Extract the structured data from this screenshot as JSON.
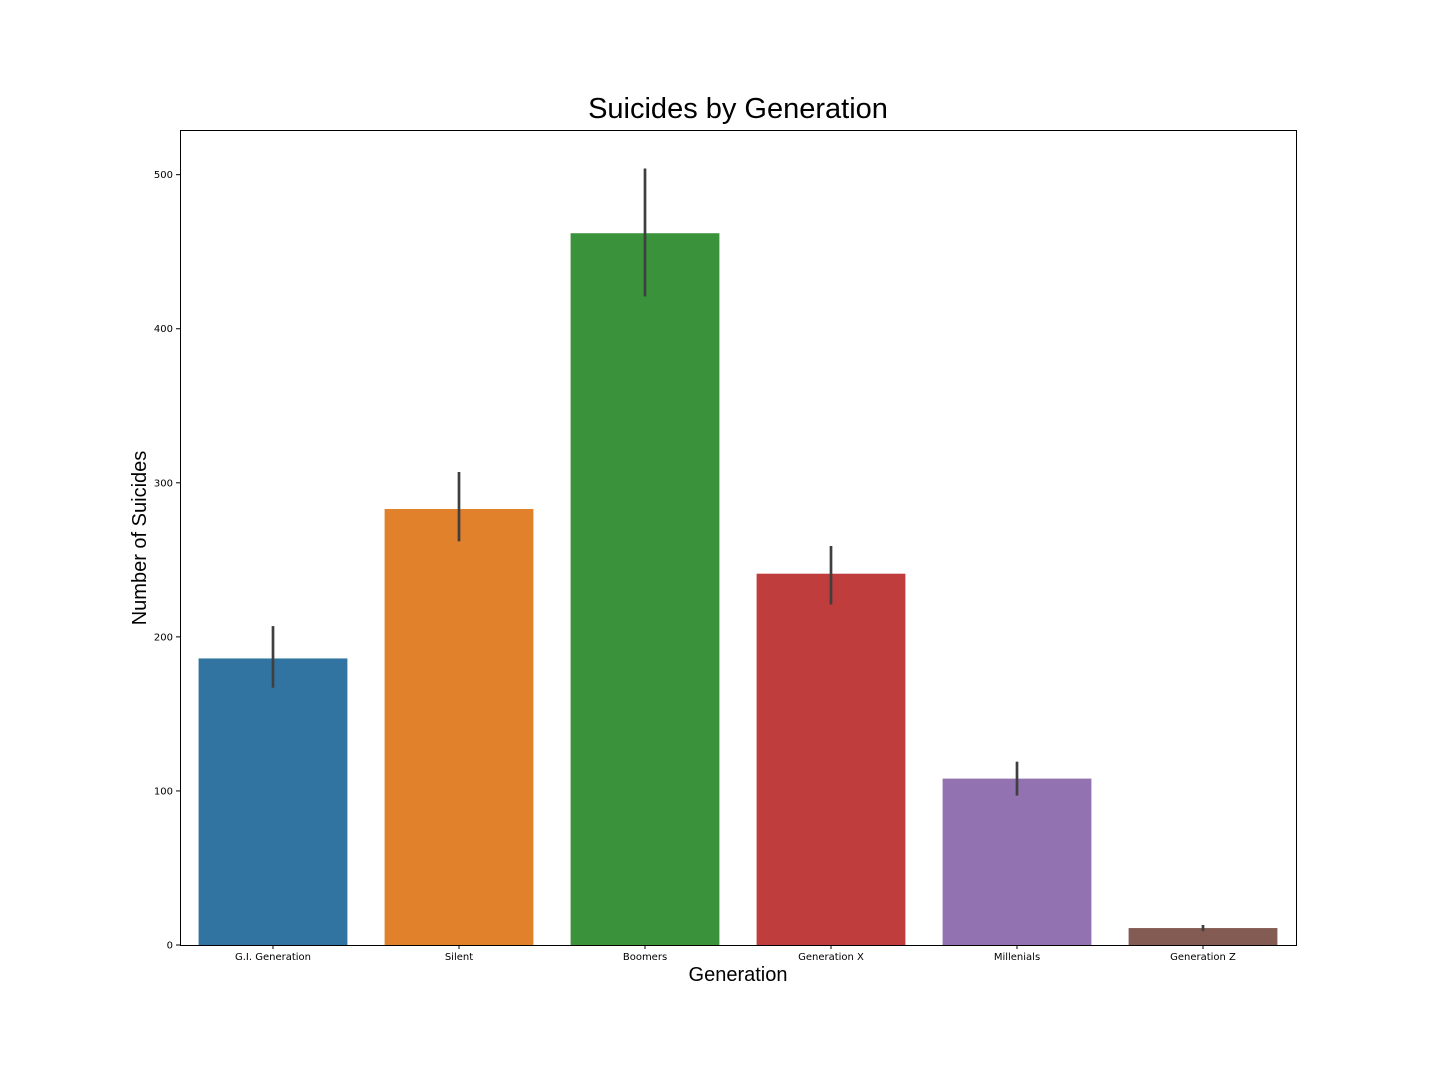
{
  "chart_data": {
    "type": "bar",
    "title": "Suicides by Generation",
    "xlabel": "Generation",
    "ylabel": "Number of Suicides",
    "categories": [
      "G.I. Generation",
      "Silent",
      "Boomers",
      "Generation X",
      "Millenials",
      "Generation Z"
    ],
    "values": [
      186,
      283,
      462,
      241,
      108,
      11
    ],
    "error_bars": [
      [
        167,
        207
      ],
      [
        262,
        307
      ],
      [
        421,
        504
      ],
      [
        221,
        259
      ],
      [
        97,
        119
      ],
      [
        9,
        13
      ]
    ],
    "colors": [
      "#3274a1",
      "#e1812c",
      "#3a923a",
      "#c03d3e",
      "#9372b2",
      "#845b53"
    ],
    "error_color": "#3f3f3f",
    "ylim": [
      0,
      529
    ],
    "yticks": [
      0,
      100,
      200,
      300,
      400,
      500
    ],
    "grid": false,
    "legend": "none"
  }
}
